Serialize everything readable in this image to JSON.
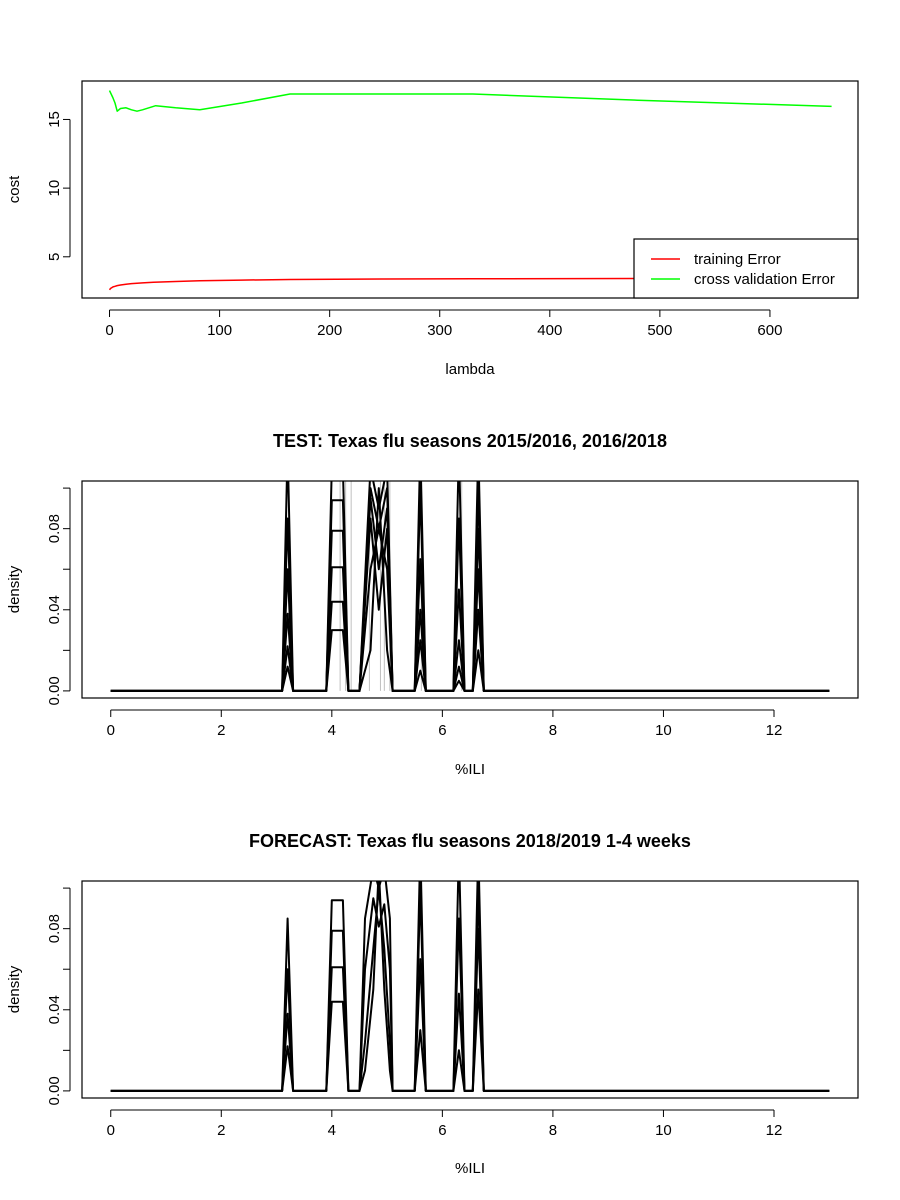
{
  "chart_data": [
    {
      "type": "line",
      "title": "",
      "xlabel": "lambda",
      "ylabel": "cost",
      "xlim": [
        -25,
        680
      ],
      "ylim": [
        2,
        17.8
      ],
      "xticks": [
        0,
        100,
        200,
        300,
        400,
        500,
        600
      ],
      "yticks": [
        5,
        10,
        15
      ],
      "legend_position": "bottom-right",
      "series": [
        {
          "name": "training Error",
          "color": "#ff0000",
          "x": [
            0,
            1,
            2,
            3,
            4,
            5,
            7,
            10,
            15,
            20,
            25,
            30,
            40,
            60,
            82,
            120,
            164,
            250,
            330,
            480,
            656
          ],
          "y": [
            2.6,
            2.7,
            2.75,
            2.8,
            2.83,
            2.85,
            2.9,
            2.95,
            3.0,
            3.05,
            3.08,
            3.1,
            3.15,
            3.2,
            3.25,
            3.3,
            3.35,
            3.38,
            3.4,
            3.42,
            3.43
          ]
        },
        {
          "name": "cross validation Error",
          "color": "#00ff00",
          "x": [
            0,
            3,
            5,
            7,
            10,
            15,
            20,
            25,
            30,
            42,
            60,
            82,
            120,
            164,
            250,
            330,
            480,
            656
          ],
          "y": [
            17.1,
            16.6,
            16.2,
            15.6,
            15.8,
            15.85,
            15.7,
            15.6,
            15.7,
            16.0,
            15.85,
            15.7,
            16.2,
            16.85,
            16.85,
            16.85,
            16.4,
            15.95
          ]
        }
      ]
    },
    {
      "type": "line",
      "title": "TEST: Texas  flu seasons 2015/2016, 2016/2018",
      "xlabel": "%ILI",
      "ylabel": "density",
      "xlim": [
        -0.52,
        13.52
      ],
      "ylim": [
        -0.0035,
        0.1035
      ],
      "xticks": [
        0,
        2,
        4,
        6,
        8,
        10,
        12
      ],
      "yticks": [
        0.0,
        0.02,
        0.04,
        0.06,
        0.08,
        0.1
      ],
      "ytick_labels": [
        "0.00",
        "",
        "0.04",
        "",
        "0.08",
        ""
      ],
      "vertical_lines_color": "#c0c0c0",
      "vertical_lines_x": [
        4.15,
        4.25,
        4.35,
        4.68,
        4.88,
        4.95,
        5.05,
        5.62,
        6.35
      ],
      "series": [
        {
          "color": "#000000",
          "x": [
            0,
            3.1,
            3.2,
            3.3,
            3.9,
            4.0,
            4.2,
            4.3,
            4.5,
            4.7,
            4.85,
            5.0,
            5.1,
            5.5,
            5.6,
            5.7,
            6.2,
            6.3,
            6.4,
            6.55,
            6.65,
            6.75,
            13
          ],
          "y": [
            0,
            0,
            0.12,
            0,
            0,
            0.11,
            0.11,
            0,
            0,
            0.11,
            0.09,
            0.11,
            0,
            0,
            0.12,
            0,
            0,
            0.12,
            0,
            0,
            0.12,
            0,
            0
          ]
        },
        {
          "color": "#000000",
          "x": [
            0,
            3.1,
            3.2,
            3.3,
            3.9,
            4.0,
            4.2,
            4.3,
            4.5,
            4.7,
            4.85,
            5.0,
            5.1,
            5.5,
            5.6,
            5.7,
            6.2,
            6.3,
            6.4,
            6.55,
            6.65,
            6.75,
            13
          ],
          "y": [
            0,
            0,
            0.085,
            0,
            0,
            0.094,
            0.094,
            0,
            0,
            0.1,
            0.08,
            0.1,
            0,
            0,
            0.1,
            0,
            0,
            0.085,
            0,
            0,
            0.1,
            0,
            0
          ]
        },
        {
          "color": "#000000",
          "x": [
            0,
            3.1,
            3.2,
            3.3,
            3.9,
            4.0,
            4.2,
            4.3,
            4.5,
            4.7,
            4.85,
            5.0,
            5.1,
            5.5,
            5.6,
            5.7,
            6.2,
            6.3,
            6.4,
            6.55,
            6.65,
            6.75,
            13
          ],
          "y": [
            0,
            0,
            0.06,
            0,
            0,
            0.079,
            0.079,
            0,
            0,
            0.095,
            0.06,
            0.09,
            0,
            0,
            0.065,
            0,
            0,
            0.05,
            0,
            0,
            0.08,
            0,
            0
          ]
        },
        {
          "color": "#000000",
          "x": [
            0,
            3.1,
            3.2,
            3.3,
            3.9,
            4.0,
            4.2,
            4.3,
            4.5,
            4.7,
            4.85,
            5.0,
            5.1,
            5.5,
            5.6,
            5.7,
            6.2,
            6.3,
            6.4,
            6.55,
            6.65,
            6.75,
            13
          ],
          "y": [
            0,
            0,
            0.038,
            0,
            0,
            0.061,
            0.061,
            0,
            0,
            0.085,
            0.04,
            0.08,
            0,
            0,
            0.04,
            0,
            0,
            0.025,
            0,
            0,
            0.06,
            0,
            0
          ]
        },
        {
          "color": "#000000",
          "x": [
            0,
            3.1,
            3.2,
            3.3,
            3.9,
            4.0,
            4.2,
            4.3,
            4.5,
            4.7,
            4.85,
            5.0,
            5.1,
            5.5,
            5.6,
            5.7,
            6.2,
            6.3,
            6.4,
            6.55,
            6.65,
            6.75,
            13
          ],
          "y": [
            0,
            0,
            0.022,
            0,
            0,
            0.044,
            0.044,
            0,
            0,
            0.06,
            0.08,
            0.06,
            0,
            0,
            0.025,
            0,
            0,
            0.012,
            0,
            0,
            0.04,
            0,
            0
          ]
        },
        {
          "color": "#000000",
          "x": [
            0,
            3.1,
            3.2,
            3.3,
            3.9,
            4.0,
            4.2,
            4.3,
            4.5,
            4.7,
            4.85,
            5.0,
            5.1,
            5.5,
            5.6,
            5.7,
            6.2,
            6.3,
            6.4,
            6.55,
            6.65,
            6.75,
            13
          ],
          "y": [
            0,
            0,
            0.012,
            0,
            0,
            0.03,
            0.03,
            0,
            0,
            0.02,
            0.1,
            0.02,
            0,
            0,
            0.01,
            0,
            0,
            0.005,
            0,
            0,
            0.02,
            0,
            0
          ]
        }
      ]
    },
    {
      "type": "line",
      "title": "FORECAST: Texas flu seasons 2018/2019 1-4 weeks",
      "xlabel": "%ILI",
      "ylabel": "density",
      "xlim": [
        -0.52,
        13.52
      ],
      "ylim": [
        -0.0035,
        0.1035
      ],
      "xticks": [
        0,
        2,
        4,
        6,
        8,
        10,
        12
      ],
      "yticks": [
        0.0,
        0.02,
        0.04,
        0.06,
        0.08,
        0.1
      ],
      "ytick_labels": [
        "0.00",
        "",
        "0.04",
        "",
        "0.08",
        ""
      ],
      "series": [
        {
          "color": "#000000",
          "x": [
            0,
            3.1,
            3.2,
            3.3,
            3.9,
            4.0,
            4.2,
            4.3,
            4.5,
            4.6,
            4.75,
            4.85,
            4.95,
            5.05,
            5.1,
            5.5,
            5.6,
            5.7,
            6.2,
            6.3,
            6.4,
            6.55,
            6.65,
            6.75,
            13
          ],
          "y": [
            0,
            0,
            0.085,
            0,
            0,
            0.094,
            0.094,
            0,
            0,
            0.085,
            0.11,
            0.1,
            0.11,
            0.085,
            0,
            0,
            0.12,
            0,
            0,
            0.12,
            0,
            0,
            0.12,
            0,
            0
          ]
        },
        {
          "color": "#000000",
          "x": [
            0,
            3.1,
            3.2,
            3.3,
            3.9,
            4.0,
            4.2,
            4.3,
            4.5,
            4.6,
            4.75,
            4.85,
            4.95,
            5.05,
            5.1,
            5.5,
            5.6,
            5.7,
            6.2,
            6.3,
            6.4,
            6.55,
            6.65,
            6.75,
            13
          ],
          "y": [
            0,
            0,
            0.06,
            0,
            0,
            0.079,
            0.079,
            0,
            0,
            0.06,
            0.095,
            0.081,
            0.092,
            0.06,
            0,
            0,
            0.1,
            0,
            0,
            0.085,
            0,
            0,
            0.1,
            0,
            0
          ]
        },
        {
          "color": "#000000",
          "x": [
            0,
            3.1,
            3.2,
            3.3,
            3.9,
            4.0,
            4.2,
            4.3,
            4.5,
            4.6,
            4.75,
            4.85,
            4.95,
            5.05,
            5.1,
            5.5,
            5.6,
            5.7,
            6.2,
            6.3,
            6.4,
            6.55,
            6.65,
            6.75,
            13
          ],
          "y": [
            0,
            0,
            0.038,
            0,
            0,
            0.061,
            0.061,
            0,
            0,
            0.024,
            0.07,
            0.1,
            0.07,
            0.024,
            0,
            0,
            0.065,
            0,
            0,
            0.048,
            0,
            0,
            0.08,
            0,
            0
          ]
        },
        {
          "color": "#000000",
          "x": [
            0,
            3.1,
            3.2,
            3.3,
            3.9,
            4.0,
            4.2,
            4.3,
            4.5,
            4.6,
            4.75,
            4.85,
            4.95,
            5.05,
            5.1,
            5.5,
            5.6,
            5.7,
            6.2,
            6.3,
            6.4,
            6.55,
            6.65,
            6.75,
            13
          ],
          "y": [
            0,
            0,
            0.022,
            0,
            0,
            0.044,
            0.044,
            0,
            0,
            0.01,
            0.05,
            0.11,
            0.05,
            0.01,
            0,
            0,
            0.03,
            0,
            0,
            0.02,
            0,
            0,
            0.05,
            0,
            0
          ]
        }
      ]
    }
  ]
}
